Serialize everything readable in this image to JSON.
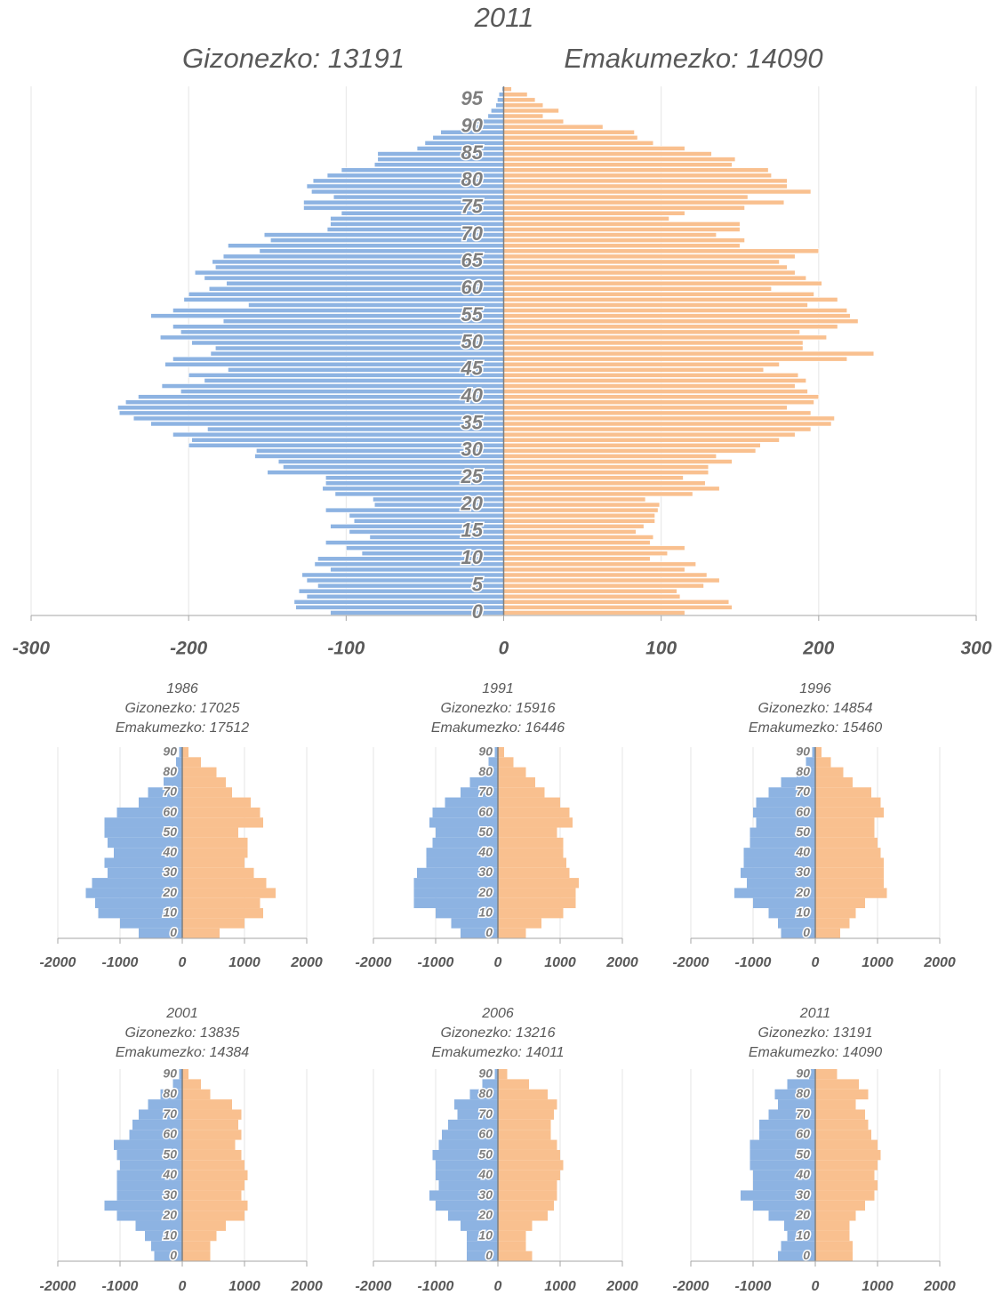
{
  "chart_data": [
    {
      "type": "pyramid",
      "title": "2011",
      "male_label": "Gizonezko: 13191",
      "female_label": "Emakumezko: 14090",
      "categories": [
        "0",
        null,
        null,
        null,
        null,
        "5",
        null,
        null,
        null,
        null,
        "10",
        null,
        null,
        null,
        null,
        "15",
        null,
        null,
        null,
        null,
        "20",
        null,
        null,
        null,
        null,
        "25",
        null,
        null,
        null,
        null,
        "30",
        null,
        null,
        null,
        null,
        "35",
        null,
        null,
        null,
        null,
        "40",
        null,
        null,
        null,
        null,
        "45",
        null,
        null,
        null,
        null,
        "50",
        null,
        null,
        null,
        null,
        "55",
        null,
        null,
        null,
        null,
        "60",
        null,
        null,
        null,
        null,
        "65",
        null,
        null,
        null,
        null,
        "70",
        null,
        null,
        null,
        null,
        "75",
        null,
        null,
        null,
        null,
        "80",
        null,
        null,
        null,
        null,
        "85",
        null,
        null,
        null,
        null,
        "90",
        null,
        null,
        null,
        null,
        "95",
        null,
        null
      ],
      "series": [
        {
          "color": "#8db3e2",
          "values": [
            -110,
            -132,
            -133,
            -125,
            -130,
            -118,
            -125,
            -128,
            -110,
            -120,
            -118,
            -90,
            -100,
            -113,
            -85,
            -98,
            -110,
            -95,
            -98,
            -113,
            -82,
            -83,
            -107,
            -115,
            -113,
            -113,
            -150,
            -140,
            -143,
            -158,
            -157,
            -200,
            -198,
            -210,
            -188,
            -224,
            -235,
            -244,
            -245,
            -240,
            -232,
            -205,
            -217,
            -190,
            -200,
            -175,
            -215,
            -210,
            -186,
            -183,
            -198,
            -218,
            -205,
            -210,
            -178,
            -224,
            -210,
            -162,
            -203,
            -200,
            -187,
            -176,
            -190,
            -196,
            -183,
            -185,
            -178,
            -155,
            -175,
            -148,
            -152,
            -112,
            -110,
            -110,
            -103,
            -127,
            -127,
            -108,
            -122,
            -125,
            -121,
            -112,
            -103,
            -82,
            -80,
            -80,
            -55,
            -50,
            -45,
            -40,
            -25,
            -22,
            -10,
            -8,
            -5,
            -4,
            -3,
            -1
          ]
        },
        {
          "color": "#f9c08f",
          "values": [
            115,
            145,
            143,
            112,
            110,
            127,
            137,
            129,
            115,
            122,
            93,
            104,
            115,
            93,
            95,
            84,
            89,
            96,
            96,
            98,
            99,
            90,
            120,
            137,
            128,
            114,
            130,
            130,
            145,
            135,
            160,
            163,
            175,
            185,
            195,
            208,
            210,
            195,
            180,
            197,
            200,
            193,
            185,
            192,
            187,
            165,
            175,
            218,
            235,
            190,
            190,
            205,
            188,
            212,
            225,
            220,
            218,
            193,
            212,
            197,
            170,
            202,
            192,
            185,
            180,
            175,
            185,
            200,
            150,
            153,
            135,
            150,
            150,
            105,
            115,
            153,
            178,
            155,
            195,
            180,
            180,
            170,
            168,
            145,
            147,
            132,
            115,
            95,
            85,
            83,
            63,
            38,
            25,
            35,
            25,
            20,
            15,
            5
          ]
        }
      ],
      "xlim": [
        -300,
        300
      ],
      "xticks": [
        -300,
        -200,
        -100,
        0,
        100,
        200,
        300
      ],
      "grid": true
    },
    {
      "type": "pyramid",
      "title": "1986",
      "male_label": "Gizonezko: 17025",
      "female_label": "Emakumezko: 17512",
      "categories": [
        "0",
        null,
        "10",
        null,
        "20",
        null,
        "30",
        null,
        "40",
        null,
        "50",
        null,
        "60",
        null,
        "70",
        null,
        "80",
        null,
        "90"
      ],
      "series": [
        {
          "color": "#8db3e2",
          "values": [
            -700,
            -1000,
            -1350,
            -1400,
            -1550,
            -1450,
            -1200,
            -1250,
            -1100,
            -1200,
            -1250,
            -1250,
            -1050,
            -700,
            -550,
            -300,
            -150,
            -100,
            -50
          ]
        },
        {
          "color": "#f9c08f",
          "values": [
            600,
            1000,
            1300,
            1250,
            1500,
            1350,
            1150,
            1000,
            1050,
            1050,
            900,
            1300,
            1250,
            1100,
            800,
            700,
            550,
            300,
            100
          ]
        }
      ],
      "xlim": [
        -2000,
        2000
      ],
      "xticks": [
        -2000,
        -1000,
        0,
        1000,
        2000
      ],
      "grid": true
    },
    {
      "type": "pyramid",
      "title": "1991",
      "male_label": "Gizonezko: 15916",
      "female_label": "Emakumezko: 16446",
      "categories": [
        "0",
        null,
        "10",
        null,
        "20",
        null,
        "30",
        null,
        "40",
        null,
        "50",
        null,
        "60",
        null,
        "70",
        null,
        "80",
        null,
        "90"
      ],
      "series": [
        {
          "color": "#8db3e2",
          "values": [
            -600,
            -750,
            -1000,
            -1350,
            -1350,
            -1350,
            -1300,
            -1150,
            -1150,
            -1050,
            -1000,
            -1100,
            -1050,
            -850,
            -600,
            -450,
            -250,
            -150,
            -50
          ]
        },
        {
          "color": "#f9c08f",
          "values": [
            450,
            700,
            1050,
            1250,
            1250,
            1300,
            1150,
            1100,
            1050,
            1050,
            950,
            1200,
            1150,
            1000,
            750,
            600,
            450,
            250,
            100
          ]
        }
      ],
      "xlim": [
        -2000,
        2000
      ],
      "xticks": [
        -2000,
        -1000,
        0,
        1000,
        2000
      ],
      "grid": true
    },
    {
      "type": "pyramid",
      "title": "1996",
      "male_label": "Gizonezko: 14854",
      "female_label": "Emakumezko: 15460",
      "categories": [
        "0",
        null,
        "10",
        null,
        "20",
        null,
        "30",
        null,
        "40",
        null,
        "50",
        null,
        "60",
        null,
        "70",
        null,
        "80",
        null,
        "90"
      ],
      "series": [
        {
          "color": "#8db3e2",
          "values": [
            -550,
            -600,
            -750,
            -1000,
            -1300,
            -1100,
            -1200,
            -1150,
            -1150,
            -1050,
            -1050,
            -950,
            -1000,
            -950,
            -750,
            -550,
            -300,
            -150,
            -50
          ]
        },
        {
          "color": "#f9c08f",
          "values": [
            400,
            550,
            650,
            800,
            1150,
            1100,
            1100,
            1100,
            1050,
            1000,
            950,
            950,
            1100,
            1050,
            900,
            600,
            450,
            250,
            100
          ]
        }
      ],
      "xlim": [
        -2000,
        2000
      ],
      "xticks": [
        -2000,
        -1000,
        0,
        1000,
        2000
      ],
      "grid": true
    },
    {
      "type": "pyramid",
      "title": "2001",
      "male_label": "Gizonezko: 13835",
      "female_label": "Emakumezko: 14384",
      "categories": [
        "0",
        null,
        "10",
        null,
        "20",
        null,
        "30",
        null,
        "40",
        null,
        "50",
        null,
        "60",
        null,
        "70",
        null,
        "80",
        null,
        "90"
      ],
      "series": [
        {
          "color": "#8db3e2",
          "values": [
            -450,
            -500,
            -600,
            -750,
            -1050,
            -1250,
            -1050,
            -1050,
            -1050,
            -1000,
            -1050,
            -1100,
            -850,
            -800,
            -700,
            -550,
            -350,
            -150,
            -50
          ]
        },
        {
          "color": "#f9c08f",
          "values": [
            450,
            450,
            550,
            700,
            1000,
            1050,
            950,
            1000,
            1050,
            1000,
            950,
            850,
            950,
            900,
            950,
            800,
            450,
            300,
            100
          ]
        }
      ],
      "xlim": [
        -2000,
        2000
      ],
      "xticks": [
        -2000,
        -1000,
        0,
        1000,
        2000
      ],
      "grid": true
    },
    {
      "type": "pyramid",
      "title": "2006",
      "male_label": "Gizonezko: 13216",
      "female_label": "Emakumezko: 14011",
      "categories": [
        "0",
        null,
        "10",
        null,
        "20",
        null,
        "30",
        null,
        "40",
        null,
        "50",
        null,
        "60",
        null,
        "70",
        null,
        "80",
        null,
        "90"
      ],
      "series": [
        {
          "color": "#8db3e2",
          "values": [
            -500,
            -500,
            -500,
            -600,
            -800,
            -1000,
            -1100,
            -950,
            -1000,
            -1000,
            -1050,
            -950,
            -900,
            -800,
            -650,
            -700,
            -450,
            -250,
            -50
          ]
        },
        {
          "color": "#f9c08f",
          "values": [
            550,
            450,
            450,
            550,
            800,
            900,
            950,
            950,
            1000,
            1050,
            1000,
            950,
            850,
            850,
            900,
            950,
            800,
            500,
            150
          ]
        }
      ],
      "xlim": [
        -2000,
        2000
      ],
      "xticks": [
        -2000,
        -1000,
        0,
        1000,
        2000
      ],
      "grid": true
    },
    {
      "type": "pyramid",
      "title": "2011",
      "male_label": "Gizonezko: 13191",
      "female_label": "Emakumezko: 14090",
      "categories": [
        "0",
        null,
        "10",
        null,
        "20",
        null,
        "30",
        null,
        "40",
        null,
        "50",
        null,
        "60",
        null,
        "70",
        null,
        "80",
        null,
        "90"
      ],
      "series": [
        {
          "color": "#8db3e2",
          "values": [
            -600,
            -550,
            -450,
            -500,
            -750,
            -1000,
            -1200,
            -1000,
            -1000,
            -1050,
            -1050,
            -1050,
            -900,
            -900,
            -750,
            -600,
            -650,
            -450,
            -100
          ]
        },
        {
          "color": "#f9c08f",
          "values": [
            600,
            600,
            550,
            550,
            650,
            800,
            950,
            1000,
            950,
            1000,
            1050,
            1000,
            900,
            850,
            800,
            650,
            850,
            700,
            350
          ]
        }
      ],
      "xlim": [
        -2000,
        2000
      ],
      "xticks": [
        -2000,
        -1000,
        0,
        1000,
        2000
      ],
      "grid": true
    }
  ]
}
